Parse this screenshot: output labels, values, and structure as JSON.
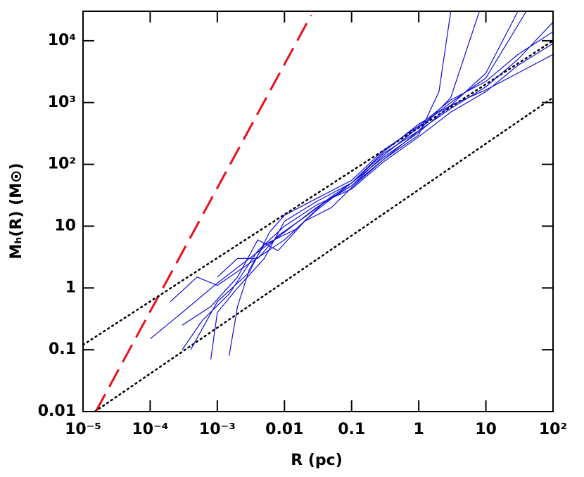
{
  "chart_data": {
    "type": "line",
    "x_label": "R (pc)",
    "y_label": "Mₕ(R) (M⊙)",
    "xscale": "log",
    "yscale": "log",
    "xlim": [
      1e-05,
      100
    ],
    "ylim": [
      0.01,
      30000
    ],
    "xticks": [
      {
        "value": 1e-05,
        "label": "10⁻⁵"
      },
      {
        "value": 0.0001,
        "label": "10⁻⁴"
      },
      {
        "value": 0.001,
        "label": "10⁻³"
      },
      0.01,
      0.1,
      1,
      10,
      {
        "value": 100,
        "label": "10²"
      }
    ],
    "yticks": [
      0.01,
      0.1,
      1,
      10,
      {
        "value": 100,
        "label": "10²"
      },
      {
        "value": 1000,
        "label": "10³"
      },
      {
        "value": 10000,
        "label": "10⁴"
      }
    ],
    "grid": false,
    "series": [
      {
        "color": "#e8101c",
        "style": "dashed",
        "x": [
          1.55e-05,
          0.025
        ],
        "values": [
          0.01,
          26000
        ]
      },
      {
        "color": "#000000",
        "style": "dotted",
        "x": [
          1e-05,
          100
        ],
        "values": [
          0.12,
          10000
        ]
      },
      {
        "color": "#000000",
        "style": "dotted",
        "x": [
          1.5e-05,
          100
        ],
        "values": [
          0.01,
          1200
        ]
      },
      {
        "color": "#1010d8",
        "style": "solid",
        "x": [
          0.0001,
          0.0003,
          0.001,
          0.003,
          0.01,
          0.03,
          0.1,
          0.3,
          1,
          2,
          3
        ],
        "values": [
          0.15,
          0.4,
          1.2,
          3,
          8,
          20,
          45,
          120,
          300,
          1500,
          30000
        ]
      },
      {
        "color": "#1010d8",
        "style": "solid",
        "x": [
          0.0002,
          0.0005,
          0.001,
          0.003,
          0.01,
          0.03,
          0.1,
          0.3,
          1,
          3,
          10,
          30
        ],
        "values": [
          0.6,
          1.5,
          1.1,
          2.5,
          6,
          18,
          50,
          130,
          330,
          900,
          3000,
          30000
        ]
      },
      {
        "color": "#1010d8",
        "style": "solid",
        "x": [
          0.0003,
          0.0006,
          0.0015,
          0.004,
          0.01,
          0.03,
          0.1,
          0.3,
          1,
          3,
          10,
          30,
          100
        ],
        "values": [
          0.1,
          0.3,
          0.8,
          4,
          10,
          22,
          40,
          110,
          280,
          700,
          1500,
          4000,
          9000
        ]
      },
      {
        "color": "#1010d8",
        "style": "solid",
        "x": [
          0.0008,
          0.001,
          0.002,
          0.005,
          0.01,
          0.03,
          0.1,
          0.3,
          1,
          3,
          10,
          30,
          100
        ],
        "values": [
          0.07,
          0.4,
          1,
          3,
          12,
          25,
          50,
          150,
          350,
          800,
          1800,
          5000,
          20000
        ]
      },
      {
        "color": "#1010d8",
        "style": "solid",
        "x": [
          0.0015,
          0.002,
          0.003,
          0.005,
          0.015,
          0.04,
          0.1,
          0.3,
          1,
          3,
          10,
          40
        ],
        "values": [
          0.08,
          0.5,
          2,
          5,
          9,
          25,
          45,
          140,
          400,
          1000,
          2500,
          30000
        ]
      },
      {
        "color": "#1010d8",
        "style": "solid",
        "x": [
          0.0003,
          0.0008,
          0.002,
          0.004,
          0.008,
          0.02,
          0.05,
          0.1,
          0.3,
          1,
          3,
          8
        ],
        "values": [
          0.25,
          0.5,
          1.5,
          6,
          4,
          12,
          20,
          42,
          120,
          350,
          1200,
          30000
        ]
      },
      {
        "color": "#1010d8",
        "style": "solid",
        "x": [
          0.0004,
          0.001,
          0.003,
          0.006,
          0.01,
          0.03,
          0.1,
          0.3,
          1,
          3,
          10,
          30,
          100
        ],
        "values": [
          0.1,
          0.6,
          1.8,
          8,
          15,
          28,
          55,
          170,
          420,
          1100,
          2200,
          6000,
          14000
        ]
      },
      {
        "color": "#1010d8",
        "style": "solid",
        "x": [
          0.001,
          0.002,
          0.004,
          0.008,
          0.02,
          0.05,
          0.1,
          0.3,
          1,
          3,
          10,
          30,
          100
        ],
        "values": [
          1.5,
          3,
          3,
          7,
          14,
          30,
          50,
          160,
          450,
          900,
          1600,
          3000,
          6000
        ]
      }
    ]
  }
}
